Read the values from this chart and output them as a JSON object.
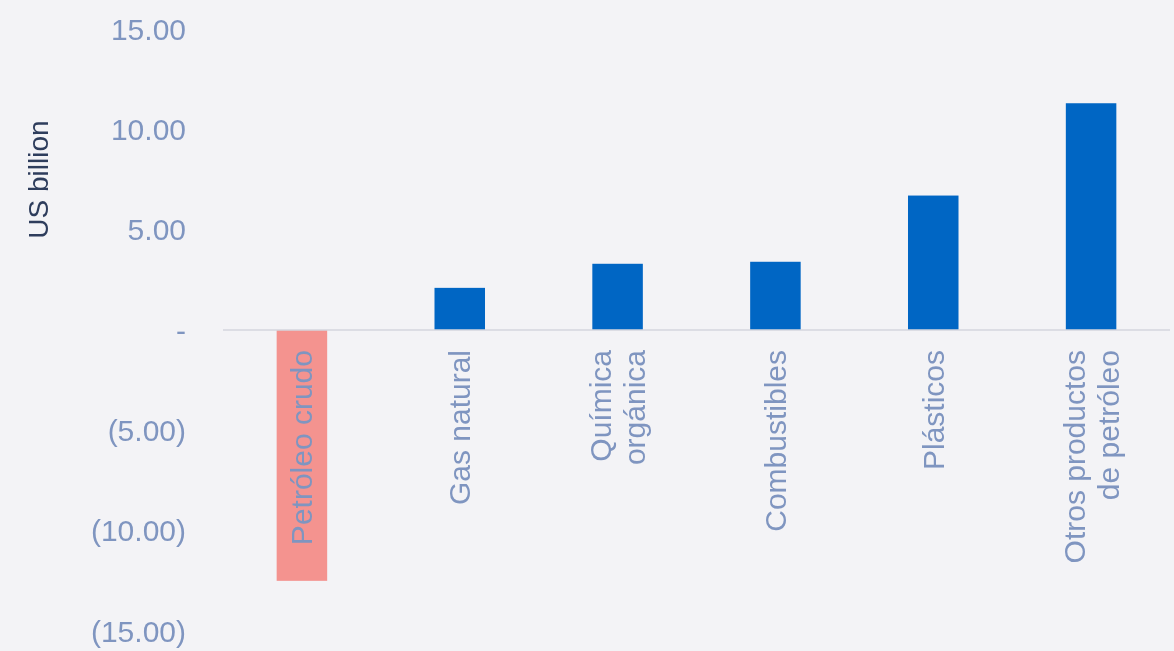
{
  "chart_data": {
    "type": "bar",
    "ylabel": "US billion",
    "categories": [
      "Petróleo crudo",
      "Gas natural",
      "Química orgánica",
      "Combustibles",
      "Plásticos",
      "Otros productos de petróleo"
    ],
    "values": [
      -12.5,
      2.1,
      3.3,
      3.4,
      6.7,
      11.3
    ],
    "colors": [
      "#f4938f",
      "#0066c4",
      "#0066c4",
      "#0066c4",
      "#0066c4",
      "#0066c4"
    ],
    "ylim": [
      -15,
      15
    ],
    "yticks": [
      {
        "value": -15,
        "label": "(15.00)"
      },
      {
        "value": -10,
        "label": "(10.00)"
      },
      {
        "value": -5,
        "label": "(5.00)"
      },
      {
        "value": 0,
        "label": "-"
      },
      {
        "value": 5,
        "label": "5.00"
      },
      {
        "value": 10,
        "label": "10.00"
      },
      {
        "value": 15,
        "label": "15.00"
      }
    ],
    "grid": false
  }
}
